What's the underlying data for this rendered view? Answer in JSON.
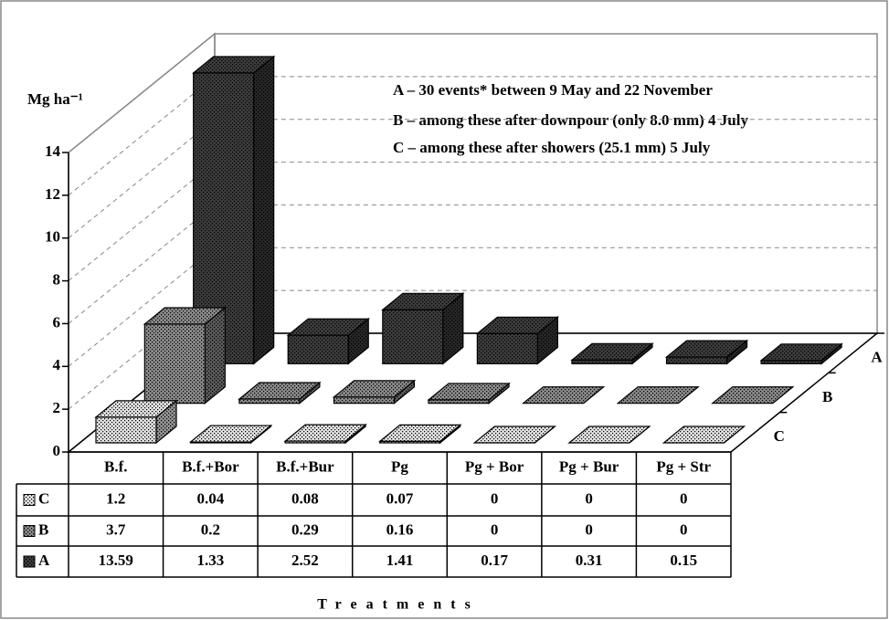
{
  "chart_data": {
    "type": "bar3d",
    "y_label": "Mg ha⁻¹",
    "x_label": "Treatments",
    "annotations": [
      "A – 30 events* between 9 May and 22 November",
      "B – among these after downpour (only 8.0 mm) 4 July",
      "C – among these after showers (25.1 mm) 5 July"
    ],
    "categories": [
      "B.f.",
      "B.f.+Bor",
      "B.f.+Bur",
      "Pg",
      "Pg + Bor",
      "Pg + Bur",
      "Pg + Str"
    ],
    "series": [
      {
        "name": "C",
        "color": "#e0e0e0",
        "values": [
          1.2,
          0.04,
          0.08,
          0.07,
          0,
          0,
          0
        ]
      },
      {
        "name": "B",
        "color": "#8a8a8a",
        "values": [
          3.7,
          0.2,
          0.29,
          0.16,
          0,
          0,
          0
        ]
      },
      {
        "name": "A",
        "color": "#3c3c3c",
        "values": [
          13.59,
          1.33,
          2.52,
          1.41,
          0.17,
          0.31,
          0.15
        ]
      }
    ],
    "ylim": [
      0,
      14
    ],
    "yticks": [
      0,
      2,
      4,
      6,
      8,
      10,
      12,
      14
    ],
    "grid": true
  }
}
